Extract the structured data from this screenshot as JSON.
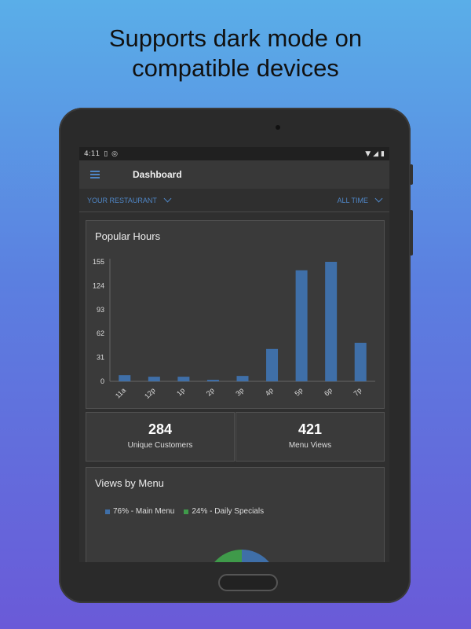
{
  "headline": {
    "line1": "Supports dark mode on",
    "line2": "compatible devices"
  },
  "statusbar": {
    "time": "4:11",
    "icons": [
      "sim-card-icon",
      "sync-icon",
      "wifi-icon",
      "signal-icon",
      "battery-icon"
    ]
  },
  "appbar": {
    "menu_icon": "hamburger-menu-icon",
    "title": "Dashboard"
  },
  "filters": {
    "restaurant": "YOUR RESTAURANT",
    "range": "ALL TIME"
  },
  "popular_hours": {
    "title": "Popular Hours"
  },
  "stats": {
    "unique_customers": {
      "value": "284",
      "label": "Unique Customers"
    },
    "menu_views": {
      "value": "421",
      "label": "Menu Views"
    }
  },
  "views_by_menu": {
    "title": "Views by Menu",
    "legend": [
      {
        "label": "76% - Main Menu",
        "color": "#3f6fa8"
      },
      {
        "label": "24% - Daily Specials",
        "color": "#3f9a4a"
      }
    ]
  },
  "colors": {
    "accent": "#4f86c6",
    "bar": "#3f6fa8",
    "specials": "#3f9a4a"
  },
  "chart_data": [
    {
      "type": "bar",
      "title": "Popular Hours",
      "categories": [
        "11a",
        "12p",
        "1p",
        "2p",
        "3p",
        "4p",
        "5p",
        "6p",
        "7p"
      ],
      "values": [
        8,
        6,
        6,
        2,
        7,
        42,
        144,
        155,
        50
      ],
      "yticks": [
        0,
        31,
        62,
        93,
        124,
        155
      ],
      "ylim": [
        0,
        155
      ],
      "xlabel": "",
      "ylabel": "",
      "grid": false
    },
    {
      "type": "pie",
      "title": "Views by Menu",
      "categories": [
        "Main Menu",
        "Daily Specials"
      ],
      "values": [
        76,
        24
      ]
    }
  ]
}
